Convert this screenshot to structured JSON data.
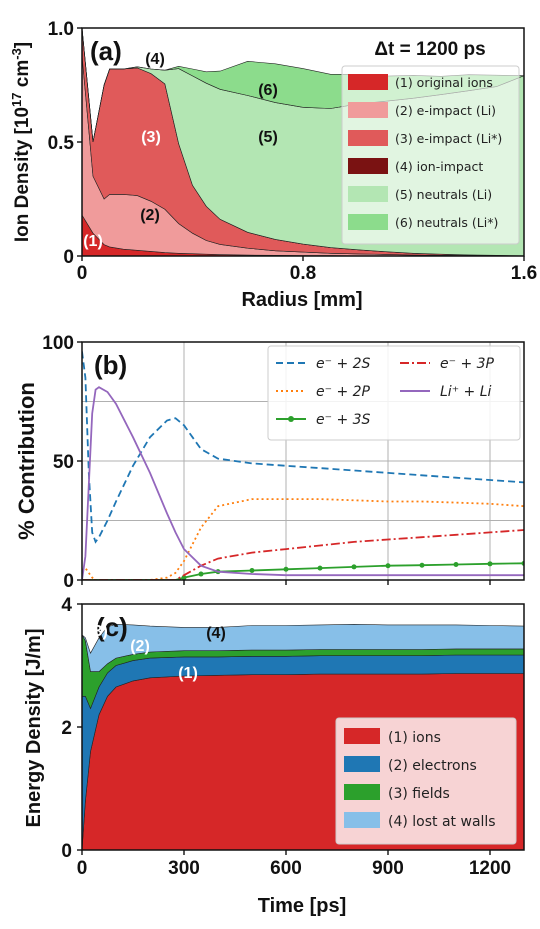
{
  "chart_data": [
    {
      "type": "area",
      "panel_label": "(a)",
      "annotation": "Δt = 1200 ps",
      "xlabel": "Radius [mm]",
      "ylabel": "Ion Density [10^17 cm^-3]",
      "xlim": [
        0,
        1.6
      ],
      "ylim": [
        0,
        1.0
      ],
      "xticks": [
        "0",
        "0.8",
        "1.6"
      ],
      "yticks": [
        "0",
        "0.5",
        "1.0"
      ],
      "legend_position": "right",
      "x": [
        0,
        0.04,
        0.08,
        0.1,
        0.15,
        0.2,
        0.25,
        0.3,
        0.35,
        0.4,
        0.45,
        0.5,
        0.6,
        0.7,
        0.8,
        0.9,
        1.0,
        1.1,
        1.2,
        1.3,
        1.4,
        1.5,
        1.6
      ],
      "series": [
        {
          "name": "(1) original ions",
          "color": "#d62728",
          "region_label": "(1)",
          "values": [
            0.18,
            0.1,
            0.05,
            0.04,
            0.03,
            0.025,
            0.02,
            0.015,
            0.012,
            0.01,
            0.008,
            0.006,
            0.004,
            0.003,
            0.002,
            0.002,
            0.001,
            0.001,
            0,
            0,
            0,
            0,
            0
          ]
        },
        {
          "name": "(2) e-impact (Li)",
          "color": "#f09b9b",
          "region_label": "(2)",
          "values": [
            0.7,
            0.25,
            0.2,
            0.23,
            0.24,
            0.24,
            0.22,
            0.19,
            0.13,
            0.09,
            0.06,
            0.045,
            0.03,
            0.02,
            0.015,
            0.01,
            0.008,
            0.006,
            0.004,
            0.003,
            0.002,
            0.001,
            0
          ]
        },
        {
          "name": "(3) e-impact (Li*)",
          "color": "#e05a5a",
          "region_label": "(3)",
          "values": [
            0.12,
            0.15,
            0.5,
            0.55,
            0.55,
            0.56,
            0.56,
            0.55,
            0.35,
            0.21,
            0.15,
            0.11,
            0.07,
            0.05,
            0.035,
            0.025,
            0.018,
            0.012,
            0.008,
            0.005,
            0.003,
            0.002,
            0.001
          ]
        },
        {
          "name": "(4) ion-impact",
          "color": "#7a1212",
          "region_label": "(4)",
          "values": [
            0,
            0,
            0,
            0,
            0,
            0,
            0,
            0,
            0,
            0,
            0,
            0,
            0,
            0,
            0,
            0,
            0,
            0,
            0,
            0,
            0,
            0,
            0
          ]
        },
        {
          "name": "(5) neutrals (Li)",
          "color": "#b3e6b3",
          "region_label": "(5)",
          "values": [
            0,
            0,
            0,
            0,
            0,
            0.005,
            0.02,
            0.06,
            0.33,
            0.48,
            0.54,
            0.57,
            0.6,
            0.6,
            0.6,
            0.61,
            0.64,
            0.66,
            0.68,
            0.7,
            0.72,
            0.74,
            0.79
          ]
        },
        {
          "name": "(6) neutrals (Li*)",
          "color": "#8cdc8c",
          "region_label": "(6)",
          "values": [
            0,
            0,
            0,
            0,
            0,
            0,
            0,
            0,
            0.01,
            0.03,
            0.05,
            0.08,
            0.15,
            0.17,
            0.17,
            0.15,
            0.13,
            0.11,
            0.1,
            0.08,
            0.07,
            0.05,
            0
          ]
        }
      ]
    },
    {
      "type": "line",
      "panel_label": "(b)",
      "xlabel": "",
      "ylabel": "% Contribution",
      "xlim": [
        0,
        1300
      ],
      "ylim": [
        0,
        100
      ],
      "yticks": [
        "0",
        "50",
        "100"
      ],
      "grid": true,
      "legend_position": "top-right",
      "x": [
        0,
        10,
        20,
        30,
        40,
        50,
        75,
        100,
        150,
        200,
        250,
        275,
        300,
        350,
        400,
        500,
        600,
        700,
        800,
        900,
        1000,
        1100,
        1200,
        1300
      ],
      "series": [
        {
          "name": "e⁻ + 2S",
          "color": "#1f77b4",
          "style": "dashed",
          "values": [
            96,
            85,
            45,
            20,
            16,
            18,
            25,
            33,
            48,
            60,
            67,
            68,
            65,
            55,
            51,
            49,
            48,
            47,
            46,
            45,
            44,
            43,
            42,
            41
          ]
        },
        {
          "name": "e⁻ + 2P",
          "color": "#ff7f0e",
          "style": "dotted",
          "values": [
            4,
            5,
            3,
            1,
            0,
            0,
            0,
            0,
            0,
            0,
            1,
            3,
            8,
            22,
            31,
            34,
            34,
            34,
            33.5,
            33,
            33,
            32.5,
            32,
            31
          ]
        },
        {
          "name": "e⁻ + 3S",
          "color": "#2ca02c",
          "style": "solid-marker",
          "values": [
            0,
            0,
            0,
            0,
            0,
            0,
            0,
            0,
            0,
            0,
            0,
            0,
            1,
            2.5,
            3.5,
            4,
            4.5,
            5,
            5.5,
            6,
            6.2,
            6.5,
            6.8,
            7
          ]
        },
        {
          "name": "e⁻ + 3P",
          "color": "#d62728",
          "style": "dashdot",
          "values": [
            0,
            0,
            0,
            0,
            0,
            0,
            0,
            0,
            0,
            0,
            0,
            0,
            2,
            6,
            9,
            11.5,
            13,
            14.5,
            16,
            17,
            18,
            19,
            20,
            21
          ]
        },
        {
          "name": "Li⁺ + Li",
          "color": "#9467bd",
          "style": "solid",
          "values": [
            0,
            10,
            40,
            70,
            80,
            81,
            79,
            74,
            60,
            45,
            28,
            20,
            13,
            6,
            3.5,
            2.5,
            2,
            2,
            2,
            2,
            2,
            2,
            2,
            2
          ]
        }
      ]
    },
    {
      "type": "area",
      "panel_label": "(c)",
      "xlabel": "Time [ps]",
      "ylabel": "Energy Density [J/m]",
      "xlim": [
        0,
        1300
      ],
      "ylim": [
        0,
        4
      ],
      "xticks": [
        "0",
        "300",
        "600",
        "900",
        "1200"
      ],
      "yticks": [
        "0",
        "2",
        "4"
      ],
      "legend_position": "bottom-right",
      "x": [
        0,
        10,
        25,
        50,
        75,
        100,
        150,
        200,
        300,
        400,
        500,
        600,
        700,
        800,
        900,
        1000,
        1100,
        1200,
        1300
      ],
      "series": [
        {
          "name": "(1) ions",
          "color": "#d62728",
          "region_label": "(1)",
          "values": [
            0,
            0.8,
            1.6,
            2.2,
            2.5,
            2.65,
            2.75,
            2.8,
            2.83,
            2.84,
            2.85,
            2.85,
            2.86,
            2.86,
            2.86,
            2.86,
            2.87,
            2.87,
            2.87
          ]
        },
        {
          "name": "(2) electrons",
          "color": "#1f77b4",
          "region_label": "(2)",
          "values": [
            2.5,
            1.7,
            0.7,
            0.45,
            0.38,
            0.35,
            0.33,
            0.32,
            0.31,
            0.3,
            0.3,
            0.3,
            0.3,
            0.3,
            0.3,
            0.3,
            0.3,
            0.3,
            0.3
          ]
        },
        {
          "name": "(3) fields",
          "color": "#2ca02c",
          "region_label": "(3)",
          "values": [
            1.0,
            0.9,
            0.6,
            0.25,
            0.15,
            0.12,
            0.1,
            0.1,
            0.1,
            0.1,
            0.1,
            0.1,
            0.1,
            0.1,
            0.1,
            0.1,
            0.1,
            0.1,
            0.1
          ]
        },
        {
          "name": "(4) lost at walls",
          "color": "#87bfe8",
          "region_label": "(4)",
          "values": [
            0,
            0.05,
            0.3,
            0.55,
            0.6,
            0.55,
            0.48,
            0.42,
            0.38,
            0.38,
            0.4,
            0.4,
            0.4,
            0.41,
            0.4,
            0.4,
            0.39,
            0.38,
            0.37
          ]
        }
      ]
    }
  ]
}
